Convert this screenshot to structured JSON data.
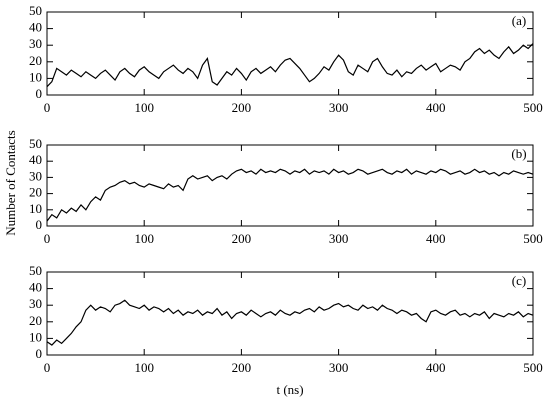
{
  "chart_data": [
    {
      "type": "line",
      "label": "(a)",
      "color": "#000000",
      "x": [
        0,
        5,
        10,
        15,
        20,
        25,
        30,
        35,
        40,
        45,
        50,
        55,
        60,
        65,
        70,
        75,
        80,
        85,
        90,
        95,
        100,
        105,
        110,
        115,
        120,
        125,
        130,
        135,
        140,
        145,
        150,
        155,
        160,
        165,
        170,
        175,
        180,
        185,
        190,
        195,
        200,
        205,
        210,
        215,
        220,
        225,
        230,
        235,
        240,
        245,
        250,
        255,
        260,
        265,
        270,
        275,
        280,
        285,
        290,
        295,
        300,
        305,
        310,
        315,
        320,
        325,
        330,
        335,
        340,
        345,
        350,
        355,
        360,
        365,
        370,
        375,
        380,
        385,
        390,
        395,
        400,
        405,
        410,
        415,
        420,
        425,
        430,
        435,
        440,
        445,
        450,
        455,
        460,
        465,
        470,
        475,
        480,
        485,
        490,
        495,
        500
      ],
      "values": [
        5,
        8,
        16,
        14,
        12,
        15,
        13,
        11,
        14,
        12,
        10,
        13,
        15,
        12,
        9,
        14,
        16,
        13,
        11,
        15,
        17,
        14,
        12,
        10,
        14,
        16,
        18,
        15,
        13,
        16,
        14,
        10,
        18,
        22,
        8,
        6,
        10,
        14,
        12,
        16,
        13,
        9,
        14,
        16,
        13,
        15,
        17,
        14,
        18,
        21,
        22,
        19,
        16,
        12,
        8,
        10,
        13,
        17,
        15,
        20,
        24,
        21,
        14,
        12,
        18,
        16,
        14,
        20,
        22,
        17,
        13,
        12,
        15,
        11,
        14,
        13,
        16,
        18,
        15,
        17,
        19,
        14,
        16,
        18,
        17,
        15,
        20,
        22,
        26,
        28,
        25,
        27,
        24,
        22,
        26,
        29,
        25,
        27,
        30,
        28,
        31
      ],
      "xlim": [
        0,
        500
      ],
      "ylim": [
        0,
        50
      ],
      "xticks": [
        0,
        100,
        200,
        300,
        400,
        500
      ],
      "yticks": [
        0,
        10,
        20,
        30,
        40,
        50
      ]
    },
    {
      "type": "line",
      "label": "(b)",
      "color": "#000000",
      "ylabel": "Number of Contacts",
      "x": [
        0,
        5,
        10,
        15,
        20,
        25,
        30,
        35,
        40,
        45,
        50,
        55,
        60,
        65,
        70,
        75,
        80,
        85,
        90,
        95,
        100,
        105,
        110,
        115,
        120,
        125,
        130,
        135,
        140,
        145,
        150,
        155,
        160,
        165,
        170,
        175,
        180,
        185,
        190,
        195,
        200,
        205,
        210,
        215,
        220,
        225,
        230,
        235,
        240,
        245,
        250,
        255,
        260,
        265,
        270,
        275,
        280,
        285,
        290,
        295,
        300,
        305,
        310,
        315,
        320,
        325,
        330,
        335,
        340,
        345,
        350,
        355,
        360,
        365,
        370,
        375,
        380,
        385,
        390,
        395,
        400,
        405,
        410,
        415,
        420,
        425,
        430,
        435,
        440,
        445,
        450,
        455,
        460,
        465,
        470,
        475,
        480,
        485,
        490,
        495,
        500
      ],
      "values": [
        3,
        7,
        5,
        10,
        8,
        11,
        9,
        13,
        10,
        15,
        18,
        16,
        22,
        24,
        25,
        27,
        28,
        26,
        27,
        25,
        24,
        26,
        25,
        24,
        23,
        26,
        24,
        25,
        22,
        29,
        31,
        29,
        30,
        31,
        28,
        30,
        31,
        29,
        32,
        34,
        35,
        33,
        34,
        32,
        35,
        33,
        34,
        33,
        35,
        34,
        32,
        34,
        33,
        35,
        32,
        34,
        33,
        34,
        32,
        35,
        33,
        34,
        32,
        33,
        35,
        34,
        32,
        33,
        34,
        35,
        33,
        32,
        34,
        33,
        35,
        32,
        34,
        33,
        32,
        34,
        33,
        35,
        34,
        32,
        33,
        34,
        32,
        33,
        35,
        33,
        34,
        32,
        33,
        31,
        33,
        32,
        34,
        33,
        32,
        33,
        32
      ],
      "xlim": [
        0,
        500
      ],
      "ylim": [
        0,
        50
      ],
      "xticks": [
        0,
        100,
        200,
        300,
        400,
        500
      ],
      "yticks": [
        0,
        10,
        20,
        30,
        40,
        50
      ]
    },
    {
      "type": "line",
      "label": "(c)",
      "color": "#000000",
      "xlabel": "t (ns)",
      "x": [
        0,
        5,
        10,
        15,
        20,
        25,
        30,
        35,
        40,
        45,
        50,
        55,
        60,
        65,
        70,
        75,
        80,
        85,
        90,
        95,
        100,
        105,
        110,
        115,
        120,
        125,
        130,
        135,
        140,
        145,
        150,
        155,
        160,
        165,
        170,
        175,
        180,
        185,
        190,
        195,
        200,
        205,
        210,
        215,
        220,
        225,
        230,
        235,
        240,
        245,
        250,
        255,
        260,
        265,
        270,
        275,
        280,
        285,
        290,
        295,
        300,
        305,
        310,
        315,
        320,
        325,
        330,
        335,
        340,
        345,
        350,
        355,
        360,
        365,
        370,
        375,
        380,
        385,
        390,
        395,
        400,
        405,
        410,
        415,
        420,
        425,
        430,
        435,
        440,
        445,
        450,
        455,
        460,
        465,
        470,
        475,
        480,
        485,
        490,
        495,
        500
      ],
      "values": [
        8,
        6,
        9,
        7,
        10,
        13,
        17,
        20,
        27,
        30,
        27,
        29,
        28,
        26,
        30,
        31,
        33,
        30,
        29,
        28,
        30,
        27,
        29,
        28,
        26,
        28,
        25,
        27,
        24,
        26,
        25,
        27,
        24,
        26,
        25,
        28,
        24,
        26,
        22,
        25,
        26,
        24,
        27,
        25,
        23,
        25,
        26,
        24,
        27,
        25,
        24,
        26,
        25,
        27,
        28,
        26,
        29,
        27,
        28,
        30,
        31,
        29,
        30,
        28,
        27,
        30,
        28,
        29,
        27,
        30,
        28,
        27,
        25,
        27,
        26,
        24,
        25,
        22,
        20,
        26,
        27,
        25,
        24,
        26,
        27,
        24,
        25,
        23,
        25,
        24,
        26,
        22,
        25,
        24,
        23,
        25,
        24,
        26,
        23,
        25,
        24
      ],
      "xlim": [
        0,
        500
      ],
      "ylim": [
        0,
        50
      ],
      "xticks": [
        0,
        100,
        200,
        300,
        400,
        500
      ],
      "yticks": [
        0,
        10,
        20,
        30,
        40,
        50
      ]
    }
  ]
}
